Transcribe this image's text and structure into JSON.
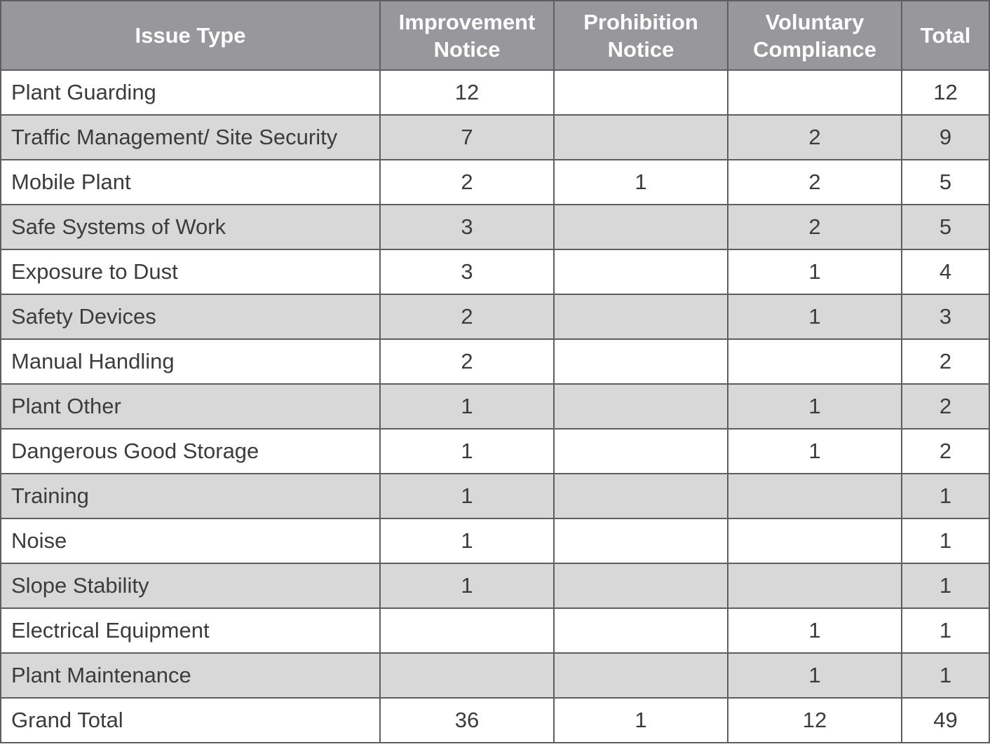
{
  "table": {
    "headers": {
      "issue_type": "Issue Type",
      "improvement": [
        "Improvement",
        "Notice"
      ],
      "prohibition": [
        "Prohibition",
        "Notice"
      ],
      "voluntary": [
        "Voluntary",
        "Compliance"
      ],
      "total": "Total"
    },
    "rows": [
      {
        "type": "Plant Guarding",
        "improvement": "12",
        "prohibition": "",
        "voluntary": "",
        "total": "12"
      },
      {
        "type": "Traffic Management/ Site Security",
        "improvement": "7",
        "prohibition": "",
        "voluntary": "2",
        "total": "9"
      },
      {
        "type": "Mobile Plant",
        "improvement": "2",
        "prohibition": "1",
        "voluntary": "2",
        "total": "5"
      },
      {
        "type": "Safe Systems of Work",
        "improvement": "3",
        "prohibition": "",
        "voluntary": "2",
        "total": "5"
      },
      {
        "type": "Exposure to Dust",
        "improvement": "3",
        "prohibition": "",
        "voluntary": "1",
        "total": "4"
      },
      {
        "type": "Safety Devices",
        "improvement": "2",
        "prohibition": "",
        "voluntary": "1",
        "total": "3"
      },
      {
        "type": "Manual Handling",
        "improvement": "2",
        "prohibition": "",
        "voluntary": "",
        "total": "2"
      },
      {
        "type": "Plant Other",
        "improvement": "1",
        "prohibition": "",
        "voluntary": "1",
        "total": "2"
      },
      {
        "type": "Dangerous Good Storage",
        "improvement": "1",
        "prohibition": "",
        "voluntary": "1",
        "total": "2"
      },
      {
        "type": "Training",
        "improvement": "1",
        "prohibition": "",
        "voluntary": "",
        "total": "1"
      },
      {
        "type": "Noise",
        "improvement": "1",
        "prohibition": "",
        "voluntary": "",
        "total": "1"
      },
      {
        "type": "Slope Stability",
        "improvement": "1",
        "prohibition": "",
        "voluntary": "",
        "total": "1"
      },
      {
        "type": "Electrical Equipment",
        "improvement": "",
        "prohibition": "",
        "voluntary": "1",
        "total": "1"
      },
      {
        "type": "Plant Maintenance",
        "improvement": "",
        "prohibition": "",
        "voluntary": "1",
        "total": "1"
      },
      {
        "type": "Grand Total",
        "improvement": "36",
        "prohibition": "1",
        "voluntary": "12",
        "total": "49"
      }
    ]
  },
  "colors": {
    "header_bg": "#98979b",
    "shaded_row_bg": "#d8d8d8",
    "border": "#5e5e60"
  }
}
